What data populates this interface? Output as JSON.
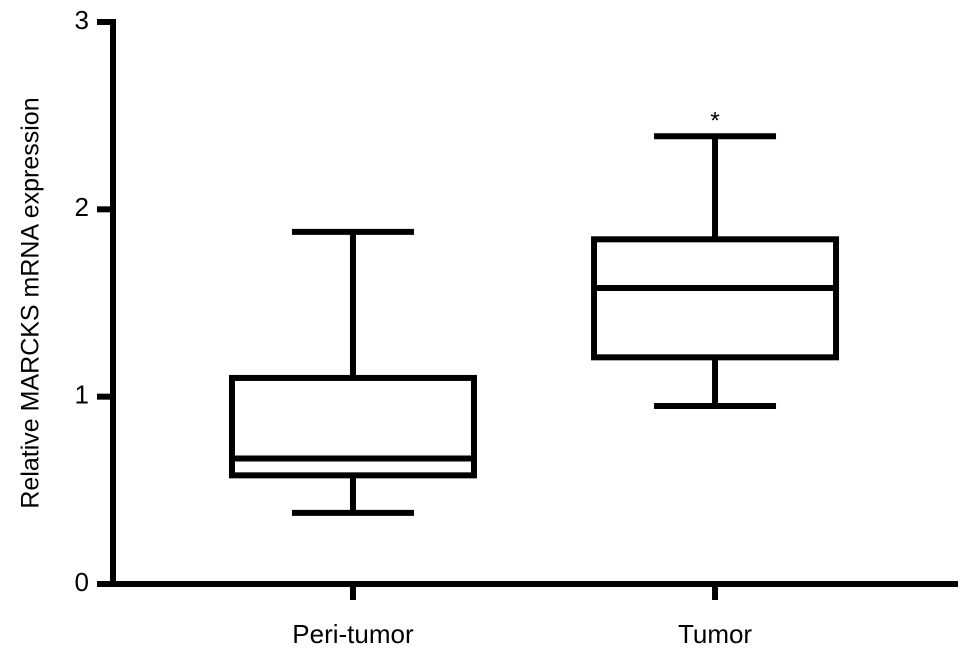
{
  "chart_data": {
    "type": "box",
    "y_label": "Relative MARCKS mRNA expression",
    "categories": [
      "Peri-tumor",
      "Tumor"
    ],
    "min": [
      0.38,
      0.95
    ],
    "q1": [
      0.58,
      1.21
    ],
    "median": [
      0.67,
      1.58
    ],
    "q3": [
      1.1,
      1.84
    ],
    "max": [
      1.88,
      2.39
    ],
    "color": "#000000",
    "ylim": [
      0,
      3
    ],
    "yticks": [
      0,
      1,
      2,
      3
    ],
    "annotations": [
      {
        "text": "*",
        "category": "Tumor"
      }
    ]
  }
}
